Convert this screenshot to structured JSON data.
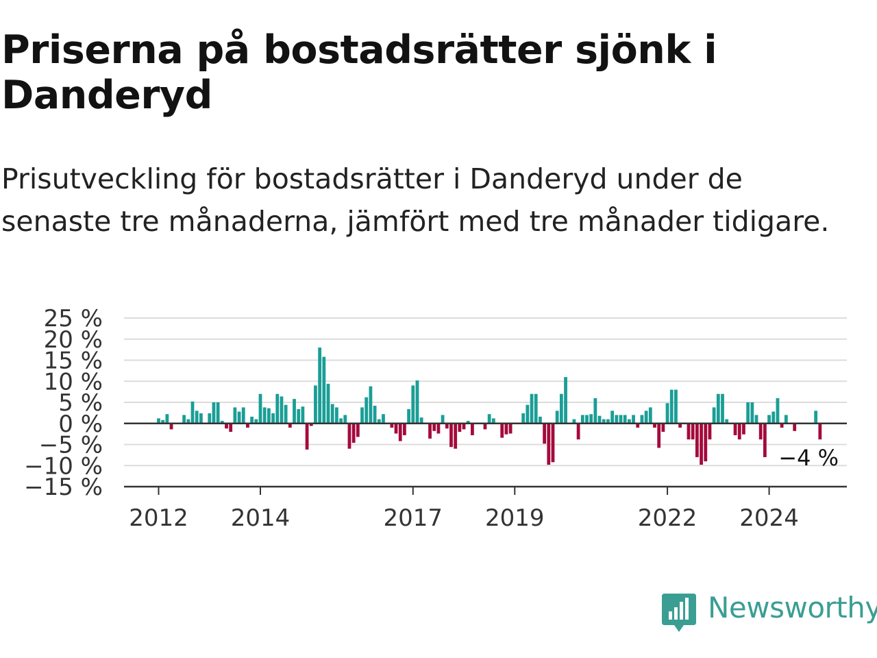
{
  "title": "Priserna på bostadsrätter sjönk i Danderyd",
  "subtitle": "Prisutveckling för bostadsrätter i Danderyd under de senaste tre månaderna, jämfört med tre månader tidigare.",
  "brand": {
    "name": "Newsworthy",
    "color": "#3a9e93"
  },
  "colors": {
    "positive": "#1a9e96",
    "negative": "#a50a3c",
    "grid": "#dcdcdc",
    "axis": "#333333"
  },
  "chart_data": {
    "type": "bar",
    "title": "Priserna på bostadsrätter sjönk i Danderyd",
    "xlabel": "",
    "ylabel": "",
    "ylim": [
      -15,
      25
    ],
    "yticks": [
      25,
      20,
      15,
      10,
      5,
      0,
      -5,
      -10,
      -15
    ],
    "ytick_labels": [
      "25 %",
      "20 %",
      "15 %",
      "10 %",
      "5 %",
      "0 %",
      "−5 %",
      "−10 %",
      "−15 %"
    ],
    "xticks": [
      {
        "label": "2012",
        "index": 0
      },
      {
        "label": "2014",
        "index": 24
      },
      {
        "label": "2017",
        "index": 60
      },
      {
        "label": "2019",
        "index": 84
      },
      {
        "label": "2022",
        "index": 120
      },
      {
        "label": "2024",
        "index": 144
      }
    ],
    "start": "2012-01",
    "frequency": "monthly",
    "grid": true,
    "annotation": {
      "text": "−4 %",
      "value": -4
    },
    "values": [
      1.2,
      0.8,
      2.2,
      -1.4,
      0,
      0,
      2.0,
      1.0,
      5.2,
      3.0,
      2.4,
      0,
      2.4,
      5.0,
      5.0,
      0.6,
      -1.2,
      -2.0,
      3.8,
      2.8,
      3.8,
      -1.0,
      1.6,
      1.0,
      7.0,
      3.8,
      3.6,
      2.4,
      7.0,
      6.4,
      4.4,
      -1.0,
      5.8,
      3.4,
      4.0,
      -6.2,
      -0.6,
      9.0,
      18.0,
      15.8,
      9.4,
      4.6,
      3.8,
      1.2,
      2.0,
      -6.0,
      -4.6,
      -3.2,
      3.8,
      6.2,
      8.8,
      4.2,
      1.0,
      2.2,
      0,
      -1.0,
      -2.4,
      -4.2,
      -2.8,
      3.4,
      9.0,
      10.2,
      1.4,
      0,
      -3.6,
      -1.8,
      -2.4,
      2.0,
      -1.2,
      -5.6,
      -6.0,
      -2.0,
      -1.4,
      0.6,
      -2.8,
      0,
      0,
      -1.4,
      2.2,
      1.2,
      0,
      -3.4,
      -2.6,
      -2.4,
      0,
      0,
      2.4,
      4.4,
      7.0,
      7.0,
      1.6,
      -4.8,
      -9.8,
      -9.2,
      3.0,
      7.0,
      11.0,
      0,
      1.0,
      -3.8,
      2.0,
      2.0,
      2.2,
      6.0,
      1.8,
      1.0,
      1.0,
      3.0,
      2.0,
      2.0,
      2.0,
      1.0,
      2.0,
      -1.0,
      2.0,
      3.0,
      3.8,
      -1.0,
      -5.8,
      -2.0,
      4.8,
      8.0,
      8.0,
      -1.0,
      0,
      -3.8,
      -3.8,
      -8.0,
      -9.8,
      -9.0,
      -3.8,
      3.8,
      7.0,
      7.0,
      1.0,
      0,
      -2.8,
      -3.8,
      -2.6,
      5.0,
      5.0,
      2.0,
      -3.8,
      -8.0,
      2.0,
      2.8,
      6.0,
      -1.0,
      2.0,
      0,
      -1.8,
      0,
      0,
      0,
      0,
      3.0,
      -3.8
    ]
  }
}
